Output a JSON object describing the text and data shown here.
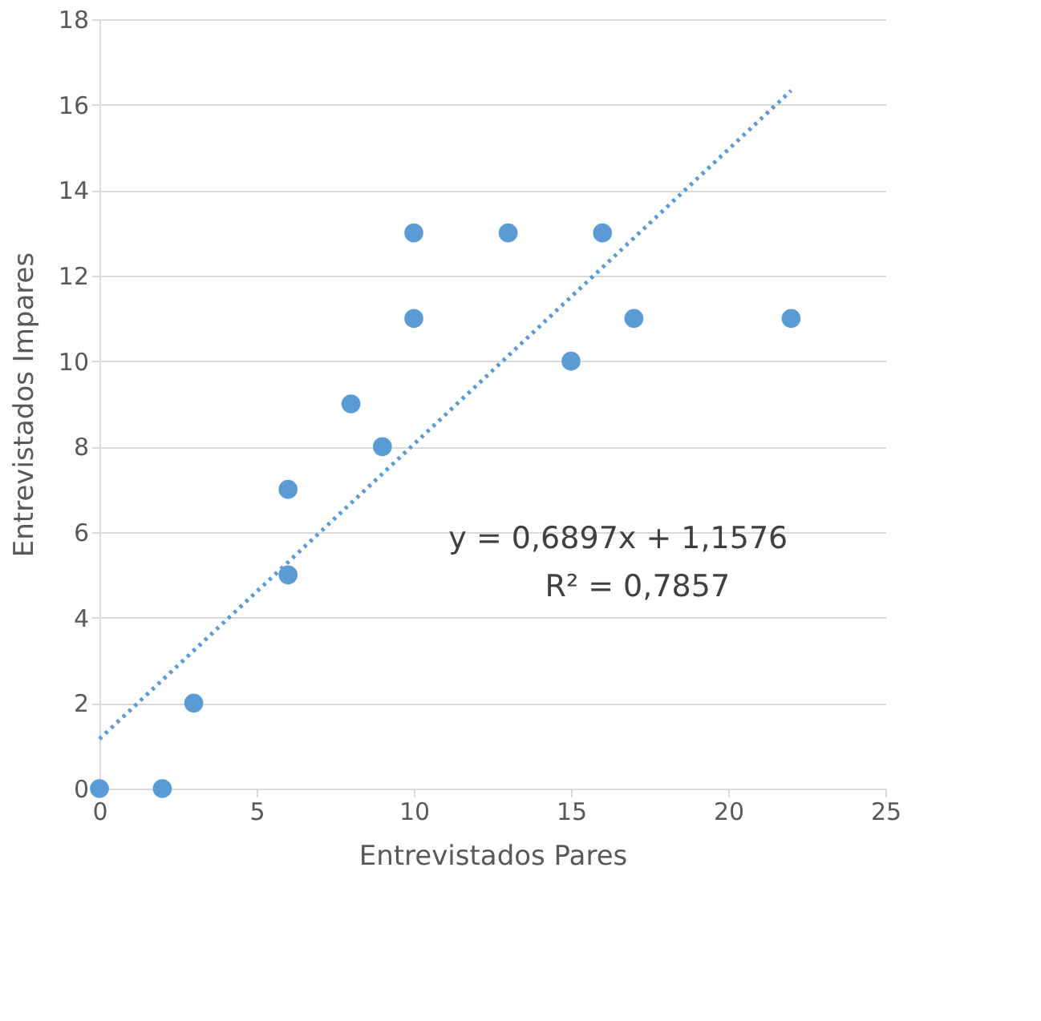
{
  "chart_data": {
    "type": "scatter",
    "xlabel": "Entrevistados Pares",
    "ylabel": "Entrevistados Impares",
    "xlim": [
      0,
      25
    ],
    "xticks": [
      0,
      5,
      10,
      15,
      20,
      25
    ],
    "ylim": [
      0,
      18
    ],
    "yticks": [
      0,
      2,
      4,
      6,
      8,
      10,
      12,
      14,
      16,
      18
    ],
    "grid": "y",
    "series": [
      {
        "color": "#5b9bd5",
        "marker": "circle",
        "x": [
          0,
          2,
          3,
          6,
          6,
          8,
          9,
          10,
          10,
          13,
          15,
          16,
          17,
          22
        ],
        "values": [
          0,
          0,
          2,
          7,
          5,
          9,
          8,
          13,
          11,
          13,
          10,
          13,
          11,
          11
        ]
      },
      {
        "type": "line",
        "color": "#5b9bd5",
        "line_style": "dotted",
        "marker": "none",
        "x": [
          0,
          22
        ],
        "values": [
          1.16,
          16.33
        ]
      }
    ],
    "annotations": [
      "y = 0,6897x + 1,1576",
      "R² = 0,7857"
    ]
  }
}
